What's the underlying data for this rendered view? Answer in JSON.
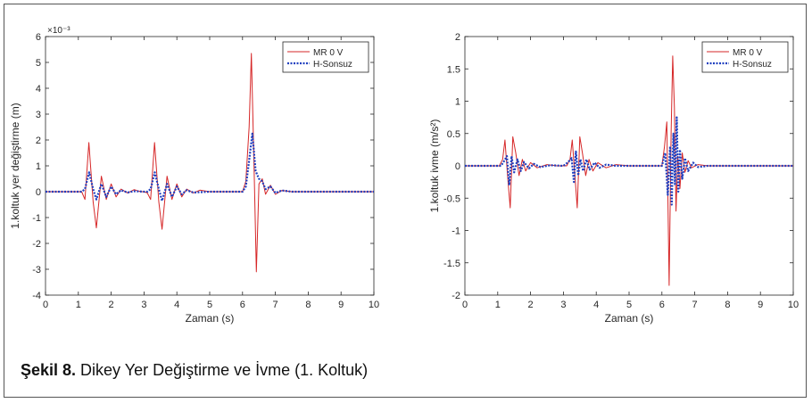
{
  "caption": {
    "bold": "Şekil 8.",
    "text": " Dikey Yer Değiştirme ve İvme (1. Koltuk)"
  },
  "chart_data": [
    {
      "type": "line",
      "xlabel": "Zaman (s)",
      "ylabel": "1.koltuk yer değiştirme (m)",
      "exponent_label": "×10⁻³",
      "xlim": [
        0,
        10
      ],
      "ylim": [
        -4,
        6
      ],
      "xticks": [
        "0",
        "1",
        "2",
        "3",
        "4",
        "5",
        "6",
        "7",
        "8",
        "9",
        "10"
      ],
      "yticks": [
        "-4",
        "-3",
        "-2",
        "-1",
        "0",
        "1",
        "2",
        "3",
        "4",
        "5",
        "6"
      ],
      "legend_position": "top-right",
      "series": [
        {
          "name": "MR 0 V",
          "color": "#d62728",
          "style": "solid",
          "x": [
            0,
            1.1,
            1.2,
            1.32,
            1.45,
            1.55,
            1.7,
            1.85,
            2.0,
            2.15,
            2.3,
            2.5,
            2.7,
            2.9,
            3.0,
            3.1,
            3.2,
            3.32,
            3.45,
            3.55,
            3.7,
            3.85,
            4.0,
            4.15,
            4.3,
            4.5,
            4.7,
            5.0,
            5.5,
            6.0,
            6.1,
            6.2,
            6.27,
            6.35,
            6.42,
            6.5,
            6.6,
            6.7,
            6.85,
            7.0,
            7.2,
            7.5,
            8,
            10
          ],
          "y": [
            0,
            0,
            -0.3,
            1.9,
            -0.4,
            -1.4,
            0.6,
            -0.3,
            0.3,
            -0.2,
            0.1,
            -0.05,
            0.08,
            0,
            0,
            -0.05,
            -0.3,
            1.9,
            -0.4,
            -1.45,
            0.6,
            -0.3,
            0.3,
            -0.2,
            0.1,
            -0.05,
            0.06,
            0,
            0,
            0,
            0.4,
            2.5,
            5.35,
            1.0,
            -3.1,
            0.3,
            0.5,
            -0.1,
            0.25,
            -0.1,
            0.05,
            0,
            0,
            0
          ]
        },
        {
          "name": "H-Sonsuz",
          "color": "#1f3fbf",
          "style": "dotted",
          "x": [
            0,
            1.1,
            1.2,
            1.33,
            1.45,
            1.55,
            1.7,
            1.85,
            2.0,
            2.15,
            2.3,
            2.5,
            2.7,
            3.0,
            3.1,
            3.2,
            3.33,
            3.45,
            3.55,
            3.7,
            3.85,
            4.0,
            4.15,
            4.3,
            4.5,
            5.0,
            6.0,
            6.1,
            6.2,
            6.3,
            6.4,
            6.5,
            6.6,
            6.7,
            6.85,
            7.0,
            7.2,
            7.5,
            10
          ],
          "y": [
            0,
            0,
            0.1,
            0.75,
            0.1,
            -0.3,
            0.3,
            -0.2,
            0.2,
            -0.1,
            0.06,
            -0.03,
            0.02,
            0,
            0,
            0.1,
            0.75,
            0.1,
            -0.35,
            0.3,
            -0.2,
            0.2,
            -0.1,
            0.06,
            -0.03,
            0,
            0,
            0.2,
            1.2,
            2.25,
            0.8,
            0.5,
            0.4,
            0.1,
            0.2,
            -0.05,
            0.05,
            0,
            0
          ]
        }
      ]
    },
    {
      "type": "line",
      "xlabel": "Zaman (s)",
      "ylabel": "1.koltuk ivme (m/s²)",
      "xlim": [
        0,
        10
      ],
      "ylim": [
        -2,
        2
      ],
      "xticks": [
        "0",
        "1",
        "2",
        "3",
        "4",
        "5",
        "6",
        "7",
        "8",
        "9",
        "10"
      ],
      "yticks": [
        "-2",
        "-1.5",
        "-1",
        "-0.5",
        "0",
        "0.5",
        "1",
        "1.5",
        "2"
      ],
      "legend_position": "top-right",
      "series": [
        {
          "name": "MR 0 V",
          "color": "#d62728",
          "style": "solid",
          "x": [
            0,
            1.05,
            1.15,
            1.22,
            1.3,
            1.38,
            1.46,
            1.55,
            1.65,
            1.75,
            1.85,
            2.0,
            2.2,
            2.5,
            2.8,
            3.1,
            3.2,
            3.27,
            3.35,
            3.42,
            3.5,
            3.58,
            3.68,
            3.78,
            3.9,
            4.05,
            4.3,
            4.6,
            5,
            5.5,
            6.0,
            6.08,
            6.15,
            6.22,
            6.28,
            6.33,
            6.38,
            6.43,
            6.48,
            6.55,
            6.62,
            6.7,
            6.8,
            6.9,
            7.1,
            7.4,
            8,
            10
          ],
          "y": [
            0,
            0,
            0.1,
            0.4,
            -0.15,
            -0.65,
            0.45,
            0.2,
            -0.15,
            0.1,
            -0.08,
            0.05,
            -0.03,
            0.02,
            0,
            0,
            0.1,
            0.4,
            -0.15,
            -0.65,
            0.45,
            0.2,
            -0.15,
            0.1,
            -0.08,
            0.05,
            -0.03,
            0.02,
            0,
            0,
            0,
            0.3,
            0.68,
            -1.85,
            0.5,
            1.7,
            0.9,
            -0.7,
            0.15,
            -0.35,
            0.2,
            -0.1,
            0.08,
            -0.03,
            0.02,
            0,
            0,
            0
          ]
        },
        {
          "name": "H-Sonsuz",
          "color": "#1f3fbf",
          "style": "dotted",
          "x": [
            0,
            1.1,
            1.2,
            1.28,
            1.35,
            1.42,
            1.5,
            1.6,
            1.7,
            1.8,
            1.95,
            2.1,
            2.3,
            2.6,
            3.0,
            3.15,
            3.25,
            3.32,
            3.38,
            3.45,
            3.52,
            3.6,
            3.7,
            3.8,
            3.95,
            4.1,
            4.3,
            4.6,
            5,
            6.0,
            6.1,
            6.18,
            6.25,
            6.3,
            6.35,
            6.4,
            6.45,
            6.5,
            6.55,
            6.62,
            6.7,
            6.8,
            6.95,
            7.1,
            7.4,
            10
          ],
          "y": [
            0,
            0,
            0.08,
            0.15,
            -0.3,
            0.15,
            -0.1,
            0.1,
            -0.08,
            0.06,
            -0.04,
            0.03,
            -0.02,
            0.01,
            0,
            0.06,
            0.12,
            -0.25,
            0.22,
            -0.15,
            0.1,
            -0.08,
            0.1,
            -0.06,
            0.05,
            -0.03,
            0.02,
            0,
            0,
            0,
            0.2,
            -0.45,
            0.3,
            -0.6,
            0.5,
            -0.3,
            0.75,
            -0.4,
            0.25,
            -0.2,
            0.12,
            -0.08,
            0.05,
            -0.02,
            0,
            0
          ]
        }
      ]
    }
  ]
}
